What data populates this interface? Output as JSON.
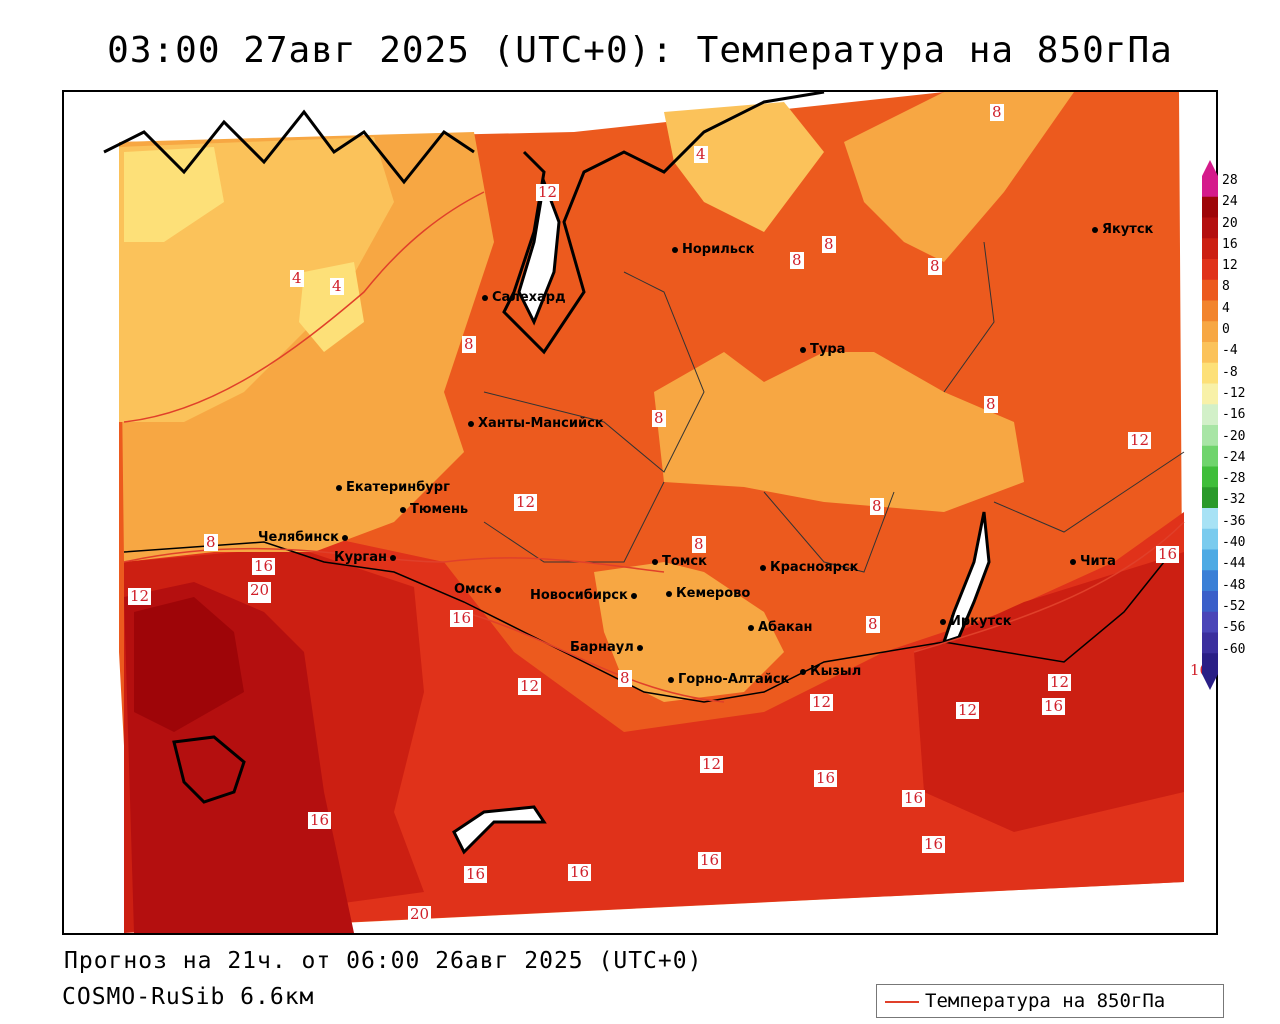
{
  "title": "03:00 27авг 2025 (UTC+0): Температура на 850гПа",
  "footer": {
    "forecast": "Прогноз на 21ч. от 06:00 26авг 2025 (UTC+0)",
    "model": "COSMO-RuSib 6.6км"
  },
  "legend": {
    "label": "Температура на 850гПа",
    "line_color": "#e0402a"
  },
  "colorbar": {
    "labels": [
      "28",
      "24",
      "20",
      "16",
      "12",
      "8",
      "4",
      "0",
      "-4",
      "-8",
      "-12",
      "-16",
      "-20",
      "-24",
      "-28",
      "-32",
      "-36",
      "-40",
      "-44",
      "-48",
      "-52",
      "-56",
      "-60"
    ],
    "colors": [
      "#d51a8b",
      "#9e0508",
      "#b40f0f",
      "#cc1f12",
      "#e0321a",
      "#ec5a1e",
      "#f2842c",
      "#f7a743",
      "#fbc25a",
      "#fde078",
      "#f8f1a8",
      "#d2f0c8",
      "#a8e5a5",
      "#6fd46c",
      "#3fbe3a",
      "#2a9a2a",
      "#a7e2f5",
      "#7acbee",
      "#4daae4",
      "#3a7fd6",
      "#3a5fc9",
      "#4a45b8",
      "#3b2f9e",
      "#2a1f86"
    ]
  },
  "cities": [
    {
      "name": "Норильск"
    },
    {
      "name": "Якутск"
    },
    {
      "name": "Салехард"
    },
    {
      "name": "Тура"
    },
    {
      "name": "Ханты-Мансийск"
    },
    {
      "name": "Екатеринбург"
    },
    {
      "name": "Тюмень"
    },
    {
      "name": "Челябинск"
    },
    {
      "name": "Курган"
    },
    {
      "name": "Омск"
    },
    {
      "name": "Томск"
    },
    {
      "name": "Новосибирск"
    },
    {
      "name": "Кемерово"
    },
    {
      "name": "Красноярск"
    },
    {
      "name": "Барнаул"
    },
    {
      "name": "Абакан"
    },
    {
      "name": "Горно-Алтайск"
    },
    {
      "name": "Кызыл"
    },
    {
      "name": "Иркутск"
    },
    {
      "name": "Чита"
    }
  ],
  "contour_labels": [
    "8",
    "4",
    "12",
    "8",
    "8",
    "8",
    "4",
    "4",
    "8",
    "8",
    "8",
    "12",
    "12",
    "8",
    "8",
    "16",
    "8",
    "16",
    "16",
    "12",
    "20",
    "16",
    "12",
    "8",
    "8",
    "12",
    "12",
    "16",
    "12",
    "16",
    "12",
    "16",
    "16",
    "16",
    "20",
    "16",
    "16",
    "16",
    "20",
    "16"
  ]
}
